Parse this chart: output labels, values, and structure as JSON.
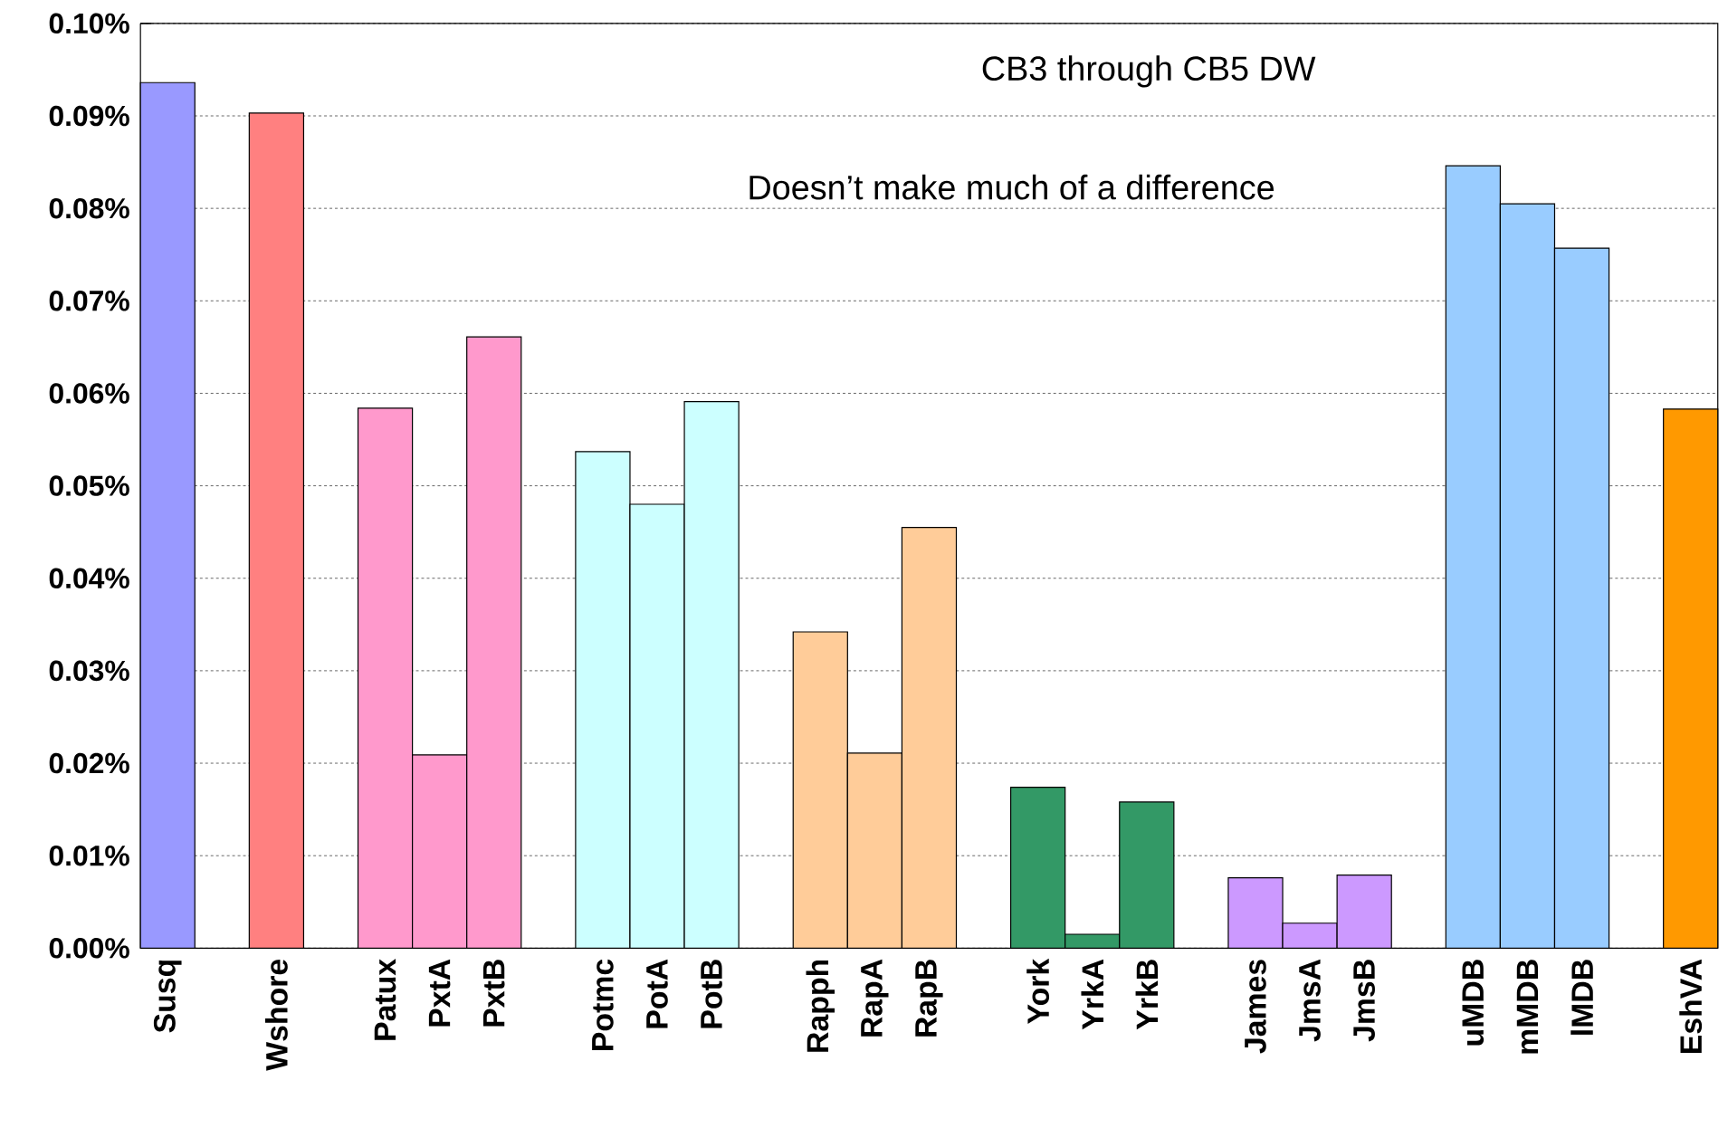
{
  "chart_data": {
    "type": "bar",
    "categories": [
      "Susq",
      null,
      "Wshore",
      null,
      "Patux",
      "PxtA",
      "PxtB",
      null,
      "Potmc",
      "PotA",
      "PotB",
      null,
      "Rapph",
      "RapA",
      "RapB",
      null,
      "York",
      "YrkA",
      "YrkB",
      null,
      "James",
      "JmsA",
      "JmsB",
      null,
      "uMDB",
      "mMDB",
      "lMDB",
      null,
      "EshVA"
    ],
    "values": [
      0.0936,
      null,
      0.0903,
      null,
      0.0584,
      0.0209,
      0.0661,
      null,
      0.0537,
      0.048,
      0.0591,
      null,
      0.0342,
      0.0211,
      0.0455,
      null,
      0.0174,
      0.0015,
      0.0158,
      null,
      0.0076,
      0.0027,
      0.0079,
      null,
      0.0846,
      0.0805,
      0.0757,
      null,
      0.0583
    ],
    "colors": [
      "#9999ff",
      null,
      "#ff8080",
      null,
      "#ff99cc",
      "#ff99cc",
      "#ff99cc",
      null,
      "#ccffff",
      "#ccffff",
      "#ccffff",
      null,
      "#ffcc99",
      "#ffcc99",
      "#ffcc99",
      null,
      "#339966",
      "#339966",
      "#339966",
      null,
      "#cc99ff",
      "#cc99ff",
      "#cc99ff",
      null,
      "#99ccff",
      "#99ccff",
      "#99ccff",
      null,
      "#ff9900"
    ],
    "ylim": [
      0,
      0.1
    ],
    "yticks": [
      {
        "value": 0,
        "label": "0.00%"
      },
      {
        "value": 0.01,
        "label": "0.01%"
      },
      {
        "value": 0.02,
        "label": "0.02%"
      },
      {
        "value": 0.03,
        "label": "0.03%"
      },
      {
        "value": 0.04,
        "label": "0.04%"
      },
      {
        "value": 0.05,
        "label": "0.05%"
      },
      {
        "value": 0.06,
        "label": "0.06%"
      },
      {
        "value": 0.07,
        "label": "0.07%"
      },
      {
        "value": 0.08,
        "label": "0.08%"
      },
      {
        "value": 0.09,
        "label": "0.09%"
      },
      {
        "value": 0.1,
        "label": "0.10%"
      }
    ],
    "grid": "y",
    "annotations": [
      "CB3 through CB5 DW",
      "Doesn’t make much of a difference"
    ]
  }
}
